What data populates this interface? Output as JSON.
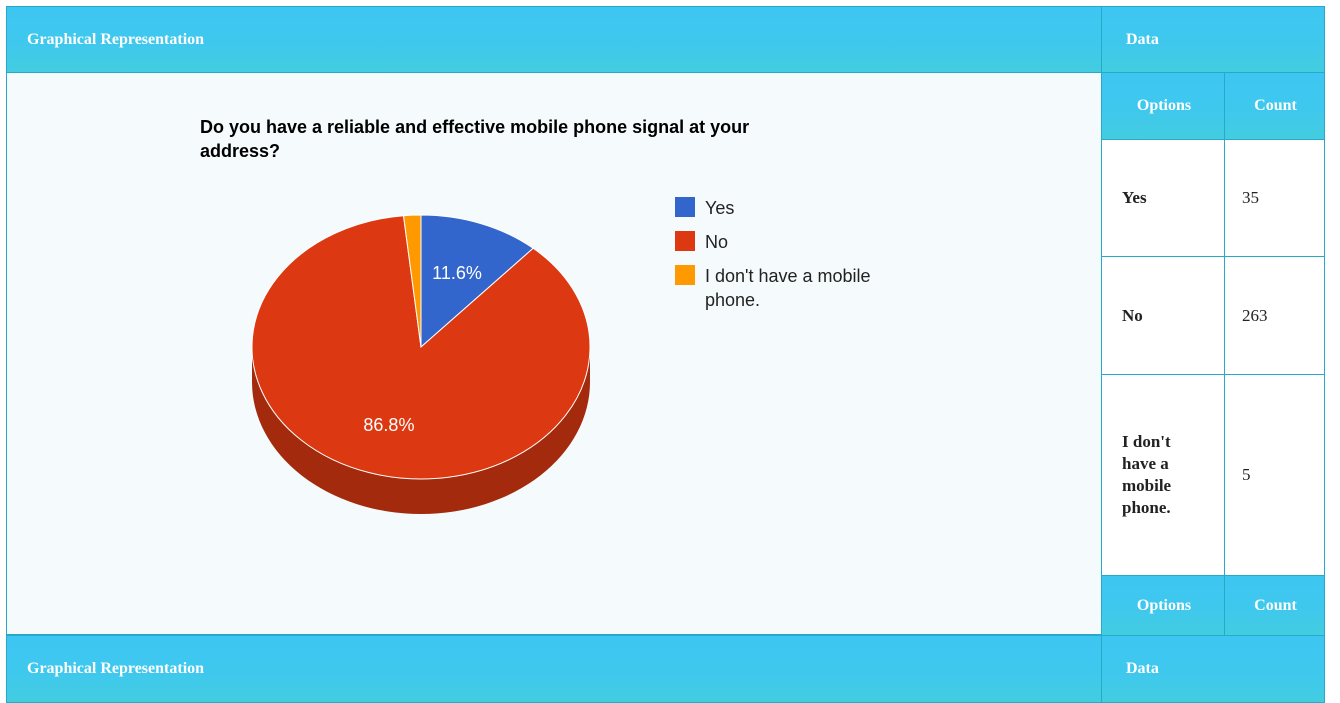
{
  "top_header": {
    "left": "Graphical Representation",
    "right": "Data"
  },
  "bottom_header": {
    "left": "Graphical Representation",
    "right": "Data"
  },
  "table": {
    "col_options": "Options",
    "col_count": "Count",
    "rows": [
      {
        "option": "Yes",
        "count": "35"
      },
      {
        "option": "No",
        "count": "263"
      },
      {
        "option": "I don't have a mobile phone.",
        "count": "5"
      }
    ]
  },
  "chart_data": {
    "type": "pie",
    "title": "Do you have a reliable and effective mobile phone signal at your address?",
    "categories": [
      "Yes",
      "No",
      "I don't have a mobile phone."
    ],
    "values": [
      35,
      263,
      5
    ],
    "slice_labels": [
      "11.6%",
      "86.8%",
      ""
    ],
    "colors": [
      "#3366cc",
      "#dc3912",
      "#ff9900"
    ],
    "legend": "right",
    "3d": true
  }
}
